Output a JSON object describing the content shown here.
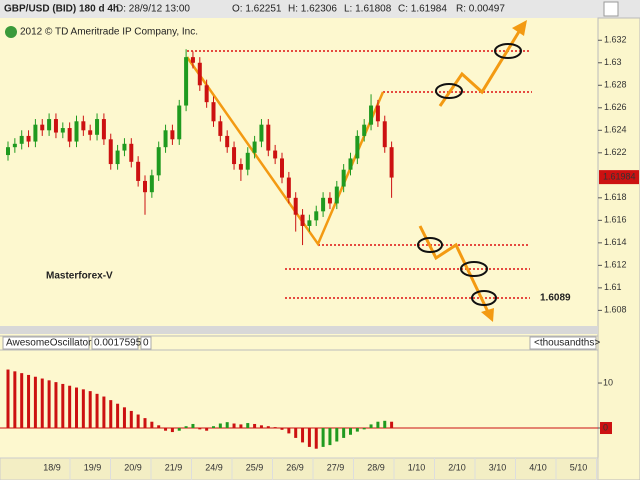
{
  "header": {
    "symbol": "GBP/USD (BID) 180 d 4h",
    "date": "D: 28/9/12 13:00",
    "open": "O: 1.62251",
    "high": "H: 1.62306",
    "low": "L: 1.61808",
    "close": "C: 1.61984",
    "range": "R: 0.00497"
  },
  "chart_data": [
    {
      "type": "candlestick",
      "copyright": "2012 © TD Ameritrade IP Company, Inc.",
      "watermark": "Masterforex-V",
      "annotation": 1.6089,
      "last_price": 1.61984,
      "up_color": "#1f9a1f",
      "down_color": "#cc1111",
      "ylim": [
        1.6067,
        1.6338
      ],
      "yticks": [
        1.632,
        1.63,
        1.628,
        1.626,
        1.624,
        1.622,
        1.618,
        1.616,
        1.614,
        1.612,
        1.61,
        1.608
      ],
      "x_labels": [
        "18/9",
        "19/9",
        "20/9",
        "21/9",
        "24/9",
        "25/9",
        "26/9",
        "27/9",
        "28/9",
        "1/10",
        "2/10",
        "3/10",
        "4/10",
        "5/10"
      ],
      "open": [
        1.6218,
        1.6225,
        1.6228,
        1.6235,
        1.623,
        1.6245,
        1.624,
        1.625,
        1.6238,
        1.6242,
        1.623,
        1.6248,
        1.624,
        1.6236,
        1.625,
        1.6232,
        1.621,
        1.6222,
        1.6228,
        1.6212,
        1.6195,
        1.6185,
        1.62,
        1.6225,
        1.624,
        1.6232,
        1.6262,
        1.6305,
        1.63,
        1.628,
        1.6265,
        1.6248,
        1.6235,
        1.6225,
        1.621,
        1.6205,
        1.622,
        1.623,
        1.6245,
        1.6222,
        1.6215,
        1.6198,
        1.618,
        1.6165,
        1.6155,
        1.616,
        1.6168,
        1.618,
        1.6175,
        1.619,
        1.6205,
        1.6215,
        1.6235,
        1.6245,
        1.6262,
        1.6248,
        1.6225
      ],
      "high": [
        1.623,
        1.6233,
        1.624,
        1.624,
        1.625,
        1.625,
        1.6255,
        1.6255,
        1.6247,
        1.6247,
        1.6253,
        1.6253,
        1.6245,
        1.6255,
        1.6255,
        1.6237,
        1.6227,
        1.6233,
        1.6233,
        1.6217,
        1.62,
        1.6205,
        1.623,
        1.6245,
        1.6245,
        1.6267,
        1.6312,
        1.631,
        1.6305,
        1.6285,
        1.627,
        1.6253,
        1.624,
        1.623,
        1.6215,
        1.6225,
        1.6235,
        1.625,
        1.625,
        1.6227,
        1.622,
        1.6203,
        1.6185,
        1.617,
        1.6165,
        1.6173,
        1.6185,
        1.6185,
        1.6195,
        1.621,
        1.622,
        1.624,
        1.625,
        1.6272,
        1.6267,
        1.6253,
        1.623
      ],
      "low": [
        1.6213,
        1.622,
        1.6223,
        1.6225,
        1.6225,
        1.6235,
        1.6235,
        1.6233,
        1.6233,
        1.6225,
        1.6225,
        1.6235,
        1.6231,
        1.6231,
        1.6227,
        1.6205,
        1.6205,
        1.6217,
        1.6207,
        1.619,
        1.6165,
        1.618,
        1.6195,
        1.622,
        1.6227,
        1.6227,
        1.6257,
        1.6295,
        1.6275,
        1.626,
        1.6243,
        1.623,
        1.622,
        1.6205,
        1.6195,
        1.62,
        1.6215,
        1.6225,
        1.6217,
        1.621,
        1.6193,
        1.6175,
        1.615,
        1.6138,
        1.615,
        1.6155,
        1.6163,
        1.617,
        1.617,
        1.6185,
        1.62,
        1.621,
        1.623,
        1.624,
        1.6243,
        1.622,
        1.618
      ],
      "close": [
        1.6225,
        1.6228,
        1.6235,
        1.623,
        1.6245,
        1.624,
        1.625,
        1.6238,
        1.6242,
        1.623,
        1.6248,
        1.624,
        1.6236,
        1.625,
        1.6232,
        1.621,
        1.6222,
        1.6228,
        1.6212,
        1.6195,
        1.6185,
        1.62,
        1.6225,
        1.624,
        1.6232,
        1.6262,
        1.6305,
        1.63,
        1.628,
        1.6265,
        1.6248,
        1.6235,
        1.6225,
        1.621,
        1.6205,
        1.622,
        1.623,
        1.6245,
        1.6222,
        1.6215,
        1.6198,
        1.618,
        1.6165,
        1.6155,
        1.616,
        1.6168,
        1.618,
        1.6175,
        1.619,
        1.6205,
        1.6215,
        1.6235,
        1.6245,
        1.6262,
        1.6248,
        1.6225,
        1.6198
      ]
    },
    {
      "type": "bar",
      "title": "AwesomeOscillator",
      "value": 0.0017595,
      "second_value": 0,
      "units": "<thousandths>",
      "up_color": "#1f9a1f",
      "down_color": "#cc1111",
      "ylim": [
        -6,
        16.9
      ],
      "yticks": [
        0,
        10
      ],
      "values": [
        13,
        12.6,
        12.2,
        11.8,
        11.4,
        11,
        10.6,
        10.2,
        9.8,
        9.4,
        9,
        8.6,
        8.2,
        7.6,
        7,
        6.2,
        5.4,
        4.6,
        3.8,
        3,
        2.2,
        1.4,
        0.6,
        -0.6,
        -0.9,
        -0.6,
        0.4,
        0.9,
        -0.3,
        -0.6,
        0.4,
        1.0,
        1.3,
        1.0,
        0.8,
        1.1,
        0.9,
        0.6,
        0.4,
        0.2,
        -0.4,
        -1.2,
        -2.2,
        -3.2,
        -4.2,
        -4.6,
        -4.2,
        -3.8,
        -3.0,
        -2.2,
        -1.5,
        -0.8,
        -0.3,
        0.8,
        1.4,
        1.6,
        1.4
      ]
    }
  ]
}
